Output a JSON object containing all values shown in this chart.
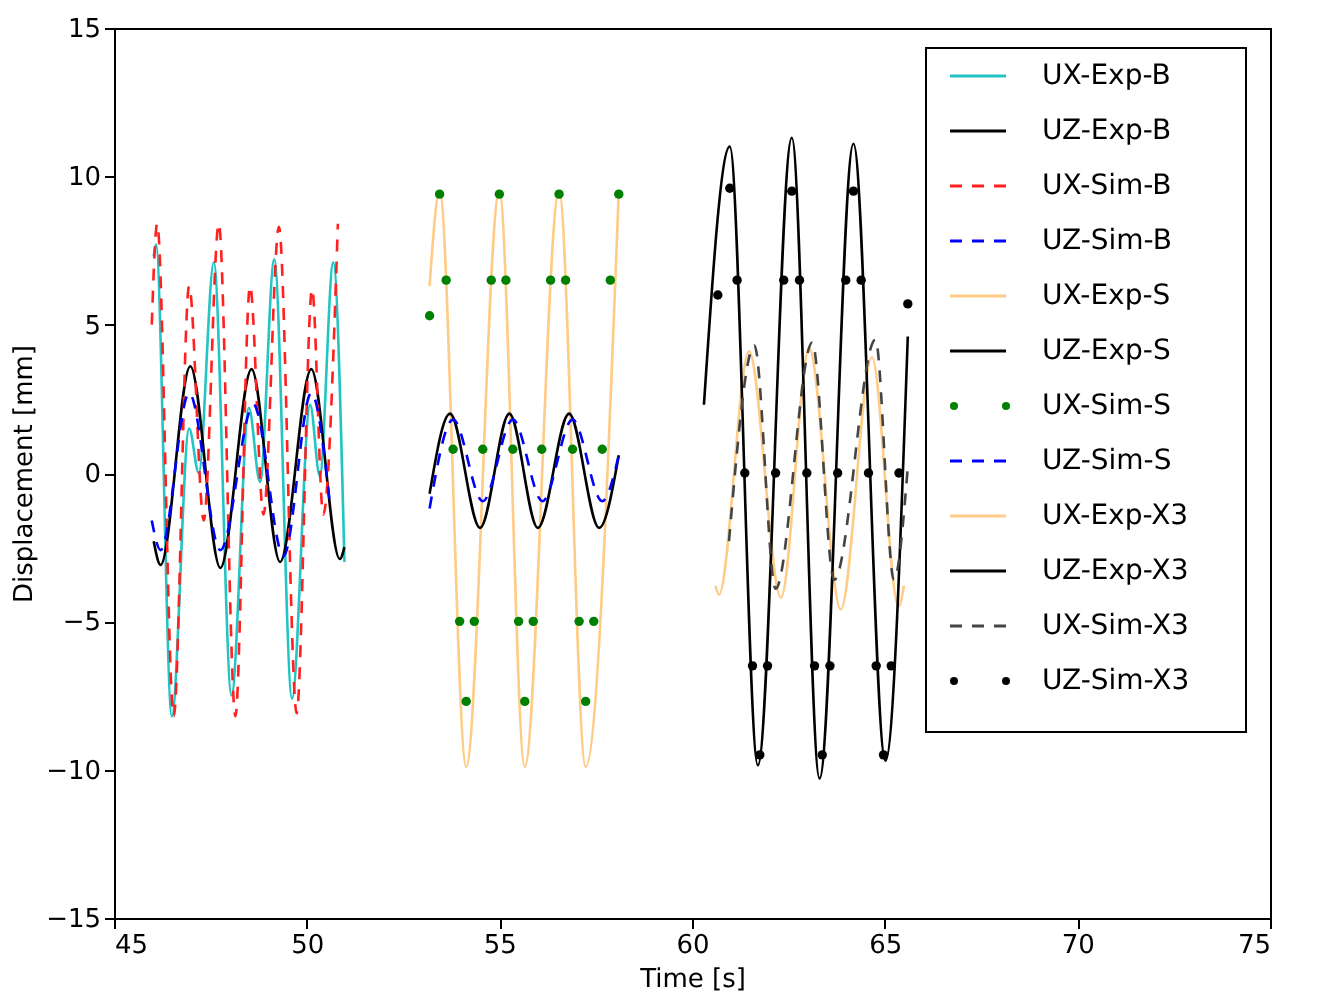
{
  "chart_data": {
    "type": "line",
    "xlabel": "Time [s]",
    "ylabel": "Displacement [mm]",
    "xlim": [
      45,
      75
    ],
    "ylim": [
      -15,
      15
    ],
    "xticks": [
      45,
      50,
      55,
      60,
      65,
      70,
      75
    ],
    "yticks": [
      -15,
      -10,
      -5,
      0,
      5,
      10,
      15
    ],
    "grid": false,
    "legend": "top right",
    "series": [
      {
        "name": "UX-Exp-B",
        "color": "#22c4c4",
        "line_style": "solid",
        "x": [
          46.03,
          46.09,
          46.5,
          46.95,
          47.2,
          47.59,
          48.05,
          48.5,
          48.79,
          49.16,
          49.62,
          50.09,
          50.34,
          50.69,
          50.98
        ],
        "values": [
          7.3,
          7.7,
          -8.2,
          1.5,
          0,
          7.1,
          -7.5,
          2.2,
          -0.3,
          7.2,
          -7.6,
          2.3,
          -0.1,
          7.1,
          -3.0
        ]
      },
      {
        "name": "UZ-Exp-B",
        "color": "#000000",
        "line_style": "solid",
        "x": [
          46.03,
          46.21,
          46.98,
          47.76,
          48.57,
          49.31,
          50.12,
          50.86,
          50.98
        ],
        "values": [
          -2.3,
          -3.1,
          3.6,
          -3.2,
          3.5,
          -3.0,
          3.5,
          -2.9,
          -2.5
        ]
      },
      {
        "name": "UX-Sim-B",
        "color": "#ff2020",
        "line_style": "dashed",
        "x": [
          45.98,
          46.12,
          46.55,
          46.95,
          47.33,
          47.72,
          48.15,
          48.53,
          48.88,
          49.28,
          49.74,
          50.14,
          50.43,
          50.81
        ],
        "values": [
          5.0,
          8.4,
          -8.2,
          6.3,
          -1.6,
          8.4,
          -8.2,
          6.3,
          -1.4,
          8.3,
          -8.1,
          6.2,
          -1.4,
          8.4
        ]
      },
      {
        "name": "UZ-Sim-B",
        "color": "#0000ff",
        "line_style": "dashed",
        "x": [
          45.98,
          46.21,
          46.95,
          47.76,
          48.62,
          49.4,
          50.12,
          50.6
        ],
        "values": [
          -1.6,
          -2.6,
          2.7,
          -2.6,
          2.3,
          -2.8,
          2.7,
          -1.0
        ]
      },
      {
        "name": "UX-Exp-S",
        "color": "#ffcc88",
        "line_style": "solid",
        "x": [
          53.19,
          53.45,
          54.14,
          55.0,
          55.66,
          56.55,
          57.24,
          58.1
        ],
        "values": [
          6.3,
          9.5,
          -9.9,
          9.5,
          -9.9,
          9.5,
          -9.9,
          9.5
        ]
      },
      {
        "name": "UZ-Exp-S",
        "color": "#000000",
        "line_style": "solid",
        "x": [
          53.19,
          53.72,
          54.5,
          55.26,
          56.0,
          56.81,
          57.59,
          58.1
        ],
        "values": [
          -0.7,
          2.0,
          -1.85,
          2.0,
          -1.85,
          2.0,
          -1.85,
          0.6
        ]
      },
      {
        "name": "UX-Sim-S",
        "type": "scatter",
        "color": "#008000",
        "marker": "circle",
        "x": [
          53.19,
          53.45,
          53.62,
          53.8,
          53.97,
          54.14,
          54.35,
          54.57,
          54.79,
          55.0,
          55.17,
          55.35,
          55.5,
          55.66,
          55.88,
          56.1,
          56.33,
          56.55,
          56.72,
          56.9,
          57.07,
          57.24,
          57.45,
          57.67,
          57.88,
          58.1
        ],
        "values": [
          5.3,
          9.4,
          6.5,
          0.8,
          -5,
          -7.7,
          -5,
          0.8,
          6.5,
          9.4,
          6.5,
          0.8,
          -5,
          -7.7,
          -5,
          0.8,
          6.5,
          9.4,
          6.5,
          0.8,
          -5,
          -7.7,
          -5,
          0.8,
          6.5,
          9.4
        ]
      },
      {
        "name": "UZ-Sim-S",
        "color": "#0000ff",
        "line_style": "dashed",
        "x": [
          53.19,
          53.8,
          54.57,
          55.35,
          56.12,
          56.9,
          57.67,
          58.1
        ],
        "values": [
          -1.2,
          1.8,
          -0.95,
          1.8,
          -0.95,
          1.8,
          -0.95,
          0.6
        ]
      },
      {
        "name": "UX-Exp-X3",
        "color": "#ffcc88",
        "line_style": "solid",
        "x": [
          60.61,
          60.7,
          61.48,
          62.31,
          63.04,
          63.86,
          64.67,
          65.36,
          65.5
        ],
        "values": [
          -3.8,
          -4.1,
          4.1,
          -4.2,
          4.2,
          -4.6,
          3.9,
          -4.5,
          -3.8
        ]
      },
      {
        "name": "UZ-Exp-X3",
        "color": "#000000",
        "line_style": "solid",
        "x": [
          60.31,
          60.98,
          61.71,
          62.59,
          63.31,
          64.19,
          65.02,
          65.6
        ],
        "values": [
          2.3,
          11.0,
          -9.85,
          11.3,
          -10.3,
          11.1,
          -9.7,
          4.6
        ]
      },
      {
        "name": "UX-Sim-X3",
        "color": "#444444",
        "line_style": "dashed",
        "x": [
          60.96,
          61.62,
          62.17,
          63.12,
          63.69,
          64.76,
          65.24,
          65.6
        ],
        "values": [
          -2.3,
          4.3,
          -3.9,
          4.4,
          -3.6,
          4.5,
          -3.6,
          0.2
        ]
      },
      {
        "name": "UZ-Sim-X3",
        "type": "scatter",
        "color": "#000000",
        "marker": "circle",
        "x": [
          60.67,
          60.98,
          61.17,
          61.37,
          61.57,
          61.76,
          61.96,
          62.17,
          62.38,
          62.59,
          62.79,
          62.98,
          63.18,
          63.38,
          63.58,
          63.78,
          63.99,
          64.19,
          64.39,
          64.58,
          64.78,
          64.97,
          65.17,
          65.37,
          65.6
        ],
        "values": [
          6.0,
          9.6,
          6.5,
          0,
          -6.5,
          -9.5,
          -6.5,
          0,
          6.5,
          9.5,
          6.5,
          0,
          -6.5,
          -9.5,
          -6.5,
          0,
          6.5,
          9.5,
          6.5,
          0,
          -6.5,
          -9.5,
          -6.5,
          0,
          5.7
        ]
      }
    ]
  }
}
